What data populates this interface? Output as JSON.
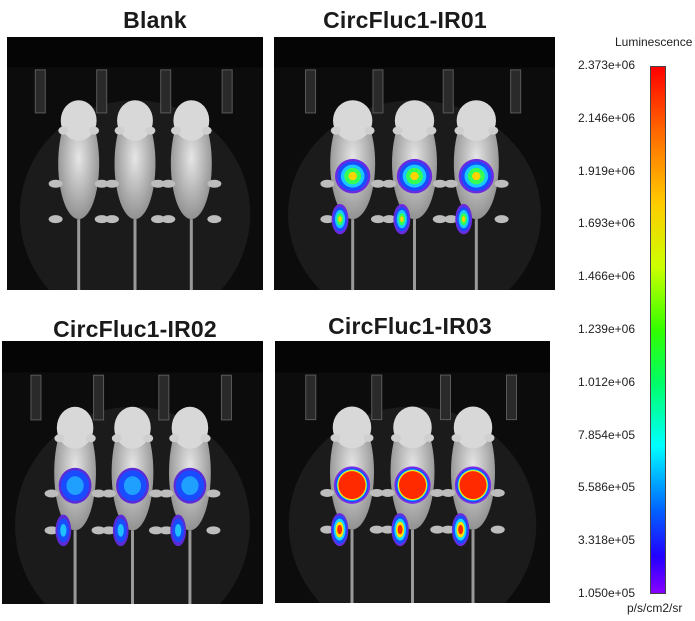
{
  "panels": [
    {
      "title": "Blank",
      "signal": "none"
    },
    {
      "title": "CircFluc1-IR01",
      "signal": "medium"
    },
    {
      "title": "CircFluc1-IR02",
      "signal": "low"
    },
    {
      "title": "CircFluc1-IR03",
      "signal": "high"
    }
  ],
  "colorbar": {
    "title": "Luminescence",
    "unit": "p/s/cm2/sr",
    "ticks": [
      "2.373e+06",
      "2.146e+06",
      "1.919e+06",
      "1.693e+06",
      "1.466e+06",
      "1.239e+06",
      "1.012e+06",
      "7.854e+05",
      "5.586e+05",
      "3.318e+05",
      "1.050e+05"
    ]
  }
}
